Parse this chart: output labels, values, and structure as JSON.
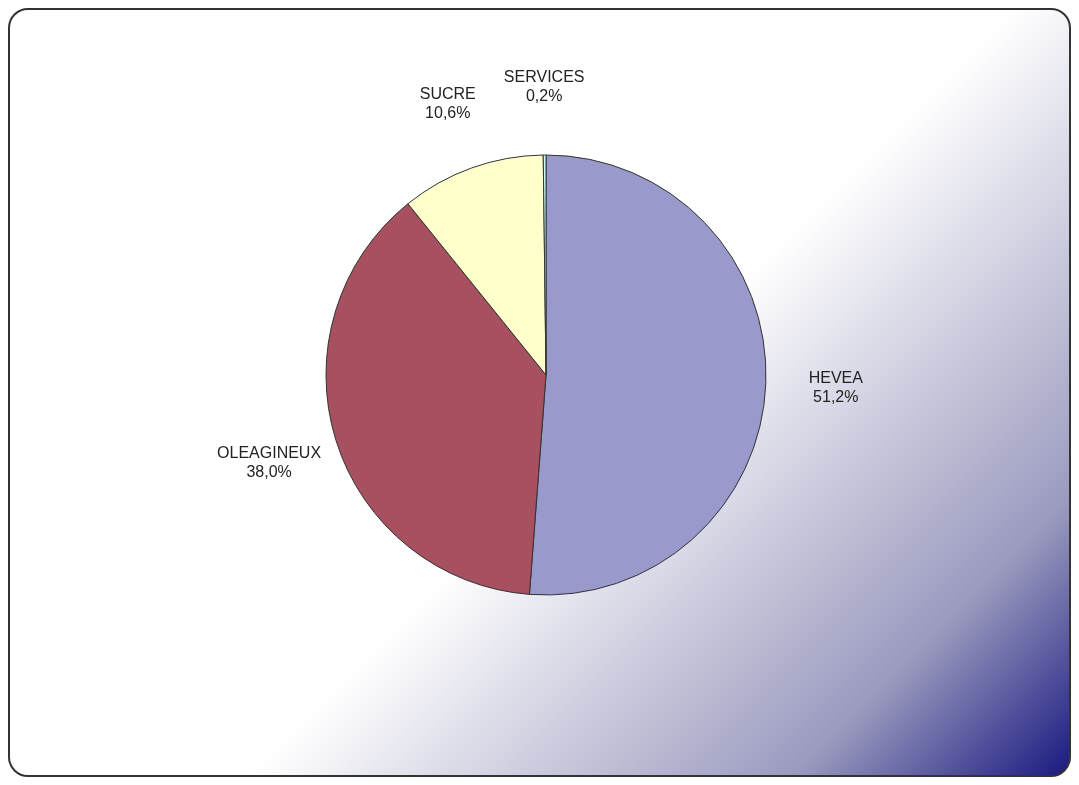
{
  "chart_data": {
    "type": "pie",
    "categories": [
      "HEVEA",
      "OLEAGINEUX",
      "SUCRE",
      "SERVICES"
    ],
    "values": [
      51.2,
      38.0,
      10.6,
      0.2
    ],
    "value_labels": [
      "51,2%",
      "38,0%",
      "10,6%",
      "0,2%"
    ],
    "colors": [
      "#9999cc",
      "#a65060",
      "#ffffcc",
      "#ccffff"
    ],
    "legend": false
  }
}
